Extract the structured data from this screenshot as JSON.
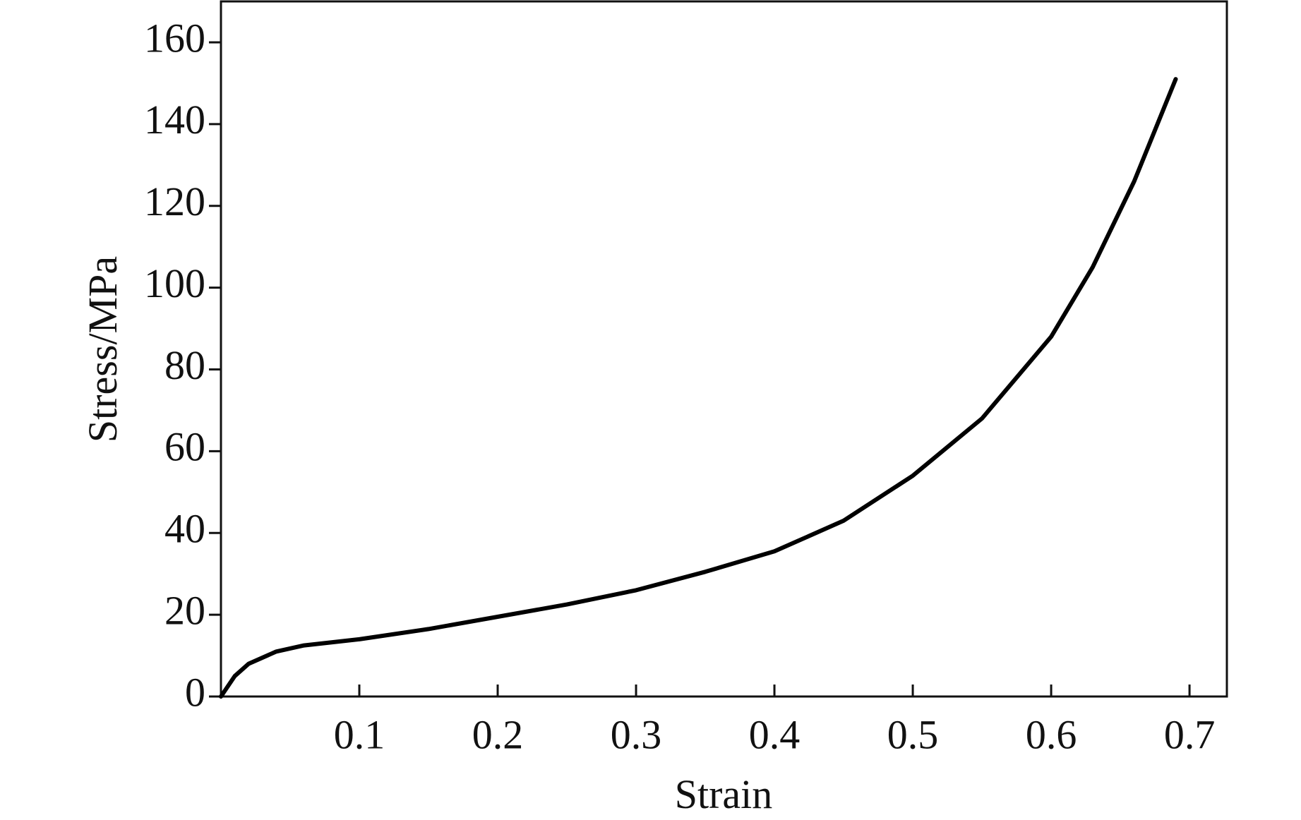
{
  "chart_data": {
    "type": "line",
    "x_label": "Strain",
    "y_label": "Stress/MPa",
    "x": [
      0,
      0.01,
      0.02,
      0.04,
      0.06,
      0.1,
      0.15,
      0.2,
      0.25,
      0.3,
      0.35,
      0.4,
      0.45,
      0.5,
      0.55,
      0.6,
      0.63,
      0.66,
      0.69
    ],
    "values": [
      0,
      5,
      8,
      11,
      12.5,
      14,
      16.5,
      19.5,
      22.5,
      26,
      30.5,
      35.5,
      43,
      54,
      68,
      88,
      105,
      126,
      151
    ],
    "color": "#000000",
    "xlim": [
      0,
      0.727
    ],
    "ylim": [
      0,
      170
    ],
    "xticks": [
      0.1,
      0.2,
      0.3,
      0.4,
      0.5,
      0.6,
      0.7
    ],
    "yticks": [
      0,
      20,
      40,
      60,
      80,
      100,
      120,
      140,
      160
    ]
  }
}
